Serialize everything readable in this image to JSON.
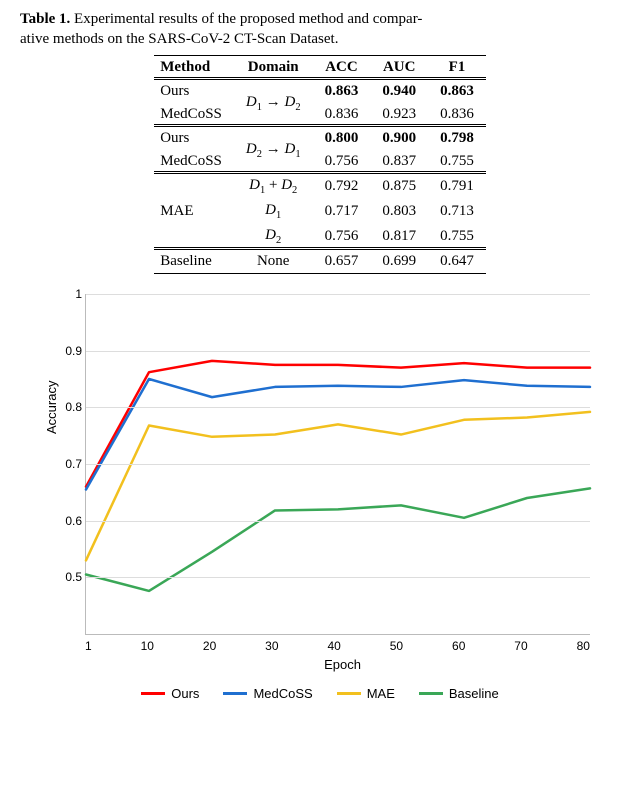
{
  "caption": {
    "label": "Table 1.",
    "text_a": "Experimental results of the proposed method and compar-",
    "text_b": "ative methods on the SARS-CoV-2 CT-Scan Dataset."
  },
  "table": {
    "headers": [
      "Method",
      "Domain",
      "ACC",
      "AUC",
      "F1"
    ],
    "groups": [
      {
        "rows": [
          {
            "method": "Ours",
            "domain": "",
            "acc": "0.863",
            "auc": "0.940",
            "f1": "0.863",
            "bold": true
          },
          {
            "method": "MedCoSS",
            "domain": "",
            "acc": "0.836",
            "auc": "0.923",
            "f1": "0.836",
            "bold": false
          }
        ],
        "domain_span": "D1→D2"
      },
      {
        "rows": [
          {
            "method": "Ours",
            "domain": "",
            "acc": "0.800",
            "auc": "0.900",
            "f1": "0.798",
            "bold": true
          },
          {
            "method": "MedCoSS",
            "domain": "",
            "acc": "0.756",
            "auc": "0.837",
            "f1": "0.755",
            "bold": false
          }
        ],
        "domain_span": "D2→D1"
      },
      {
        "rows": [
          {
            "method": "",
            "domain": "D1+D2",
            "acc": "0.792",
            "auc": "0.875",
            "f1": "0.791",
            "bold": false
          },
          {
            "method": "MAE",
            "domain": "D1",
            "acc": "0.717",
            "auc": "0.803",
            "f1": "0.713",
            "bold": false
          },
          {
            "method": "",
            "domain": "D2",
            "acc": "0.756",
            "auc": "0.817",
            "f1": "0.755",
            "bold": false
          }
        ]
      },
      {
        "rows": [
          {
            "method": "Baseline",
            "domain": "None",
            "acc": "0.657",
            "auc": "0.699",
            "f1": "0.647",
            "bold": false
          }
        ]
      }
    ]
  },
  "chart": {
    "type": "line",
    "xlabel": "Epoch",
    "ylabel": "Accuracy",
    "x": [
      1,
      10,
      20,
      30,
      40,
      50,
      60,
      70,
      80
    ],
    "ylim": [
      0.4,
      1.0
    ],
    "yticks": [
      0.4,
      0.5,
      0.6,
      0.7,
      0.8,
      0.9,
      1.0
    ],
    "yticklabels": [
      "",
      "0.5",
      "0.6",
      "0.7",
      "0.8",
      "0.9",
      "1"
    ],
    "grid_color": "#dddddd",
    "axis_color": "#bbbbbb",
    "background_color": "#ffffff",
    "line_width": 2.5,
    "series": [
      {
        "name": "Ours",
        "color": "#ff0000",
        "y": [
          0.66,
          0.862,
          0.882,
          0.875,
          0.875,
          0.87,
          0.878,
          0.87,
          0.87
        ]
      },
      {
        "name": "MedCoSS",
        "color": "#1f6fd0",
        "y": [
          0.655,
          0.85,
          0.818,
          0.836,
          0.838,
          0.836,
          0.848,
          0.838,
          0.836
        ]
      },
      {
        "name": "MAE",
        "color": "#f2c01e",
        "y": [
          0.53,
          0.768,
          0.748,
          0.752,
          0.77,
          0.752,
          0.778,
          0.782,
          0.792
        ]
      },
      {
        "name": "Baseline",
        "color": "#3aa757",
        "y": [
          0.505,
          0.476,
          0.545,
          0.618,
          0.62,
          0.627,
          0.605,
          0.64,
          0.657
        ]
      }
    ],
    "label_fontsize": 13,
    "tick_fontsize": 12
  },
  "legend_text": {
    "ours": "Ours",
    "medcoss": "MedCoSS",
    "mae": "MAE",
    "baseline": "Baseline"
  }
}
